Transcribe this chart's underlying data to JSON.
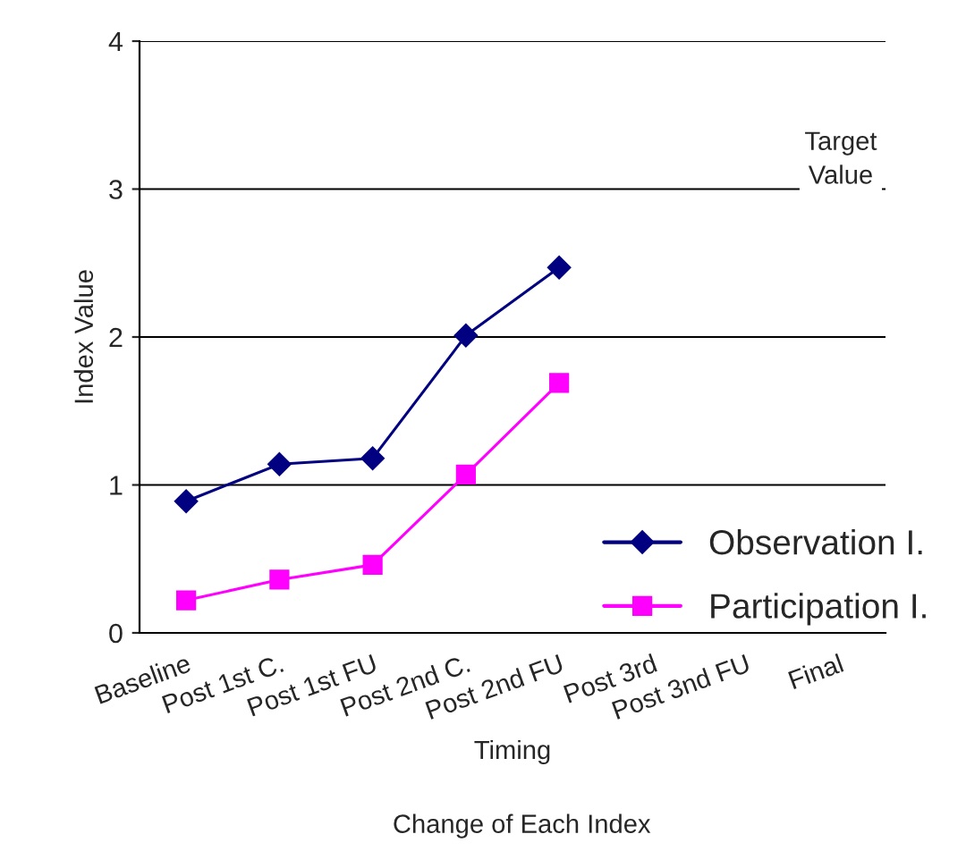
{
  "chart_data": {
    "type": "line",
    "title": "Change of Each Index",
    "xlabel": "Timing",
    "ylabel": "Index Value",
    "categories": [
      "Baseline",
      "Post 1st C.",
      "Post 1st FU",
      "Post 2nd C.",
      "Post 2nd FU",
      "Post 3rd",
      "Post 3nd FU",
      "Final"
    ],
    "series": [
      {
        "name": "Observation I.",
        "color": "#000080",
        "marker": "diamond",
        "values": [
          0.89,
          1.14,
          1.18,
          2.01,
          2.47,
          null,
          null,
          null
        ]
      },
      {
        "name": "Participation I.",
        "color": "#ff00ff",
        "marker": "square",
        "values": [
          0.22,
          0.36,
          0.46,
          1.07,
          1.69,
          null,
          null,
          null
        ]
      }
    ],
    "ylim": [
      0,
      4
    ],
    "yticks": [
      0,
      1,
      2,
      3,
      4
    ],
    "grid": "y",
    "legend": "bottom right",
    "annotations": [
      "Target Value"
    ]
  }
}
